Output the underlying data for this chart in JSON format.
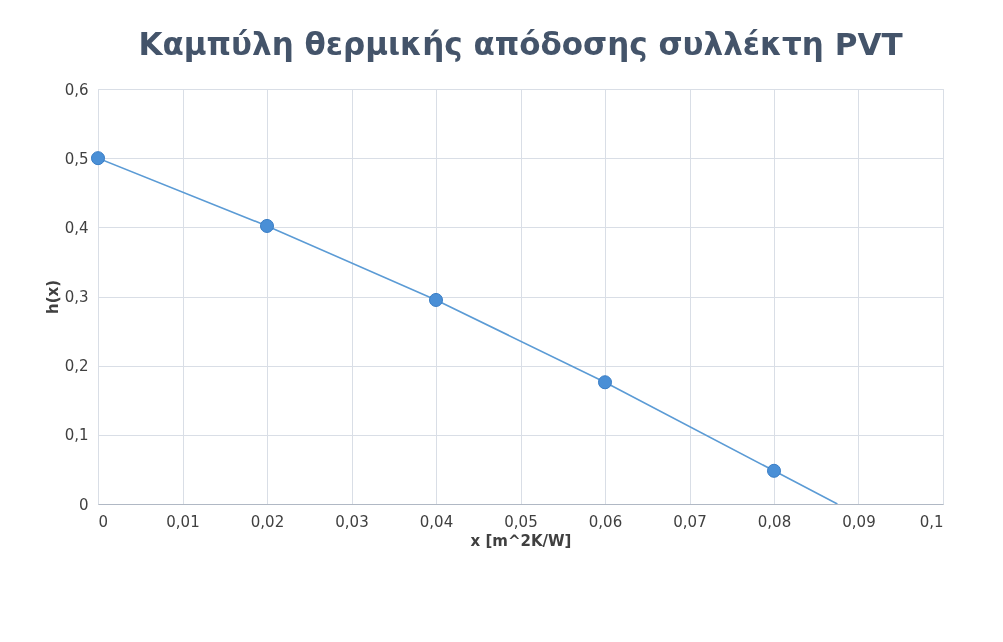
{
  "chart_data": {
    "type": "line",
    "title": "Καμπύλη θερμικής απόδοσης συλλέκτη PVT",
    "xlabel": "x [m^2K/W]",
    "ylabel": "h(x)",
    "series": [
      {
        "marker": "none",
        "color": "#5b9bd5",
        "x": [
          0,
          0.02,
          0.04,
          0.06,
          0.08,
          0.0875
        ],
        "values": [
          0.5,
          0.402,
          0.295,
          0.176,
          0.048,
          0
        ]
      },
      {
        "type": "scatter",
        "marker": "circle",
        "color": "#4a8fd6",
        "x": [
          0,
          0.02,
          0.04,
          0.06,
          0.08
        ],
        "values": [
          0.5,
          0.402,
          0.295,
          0.176,
          0.048
        ]
      }
    ],
    "xlim": [
      0,
      0.1
    ],
    "ylim": [
      0,
      0.6
    ],
    "xticks": [
      {
        "value": 0,
        "label": "0"
      },
      {
        "value": 0.01,
        "label": "0,01"
      },
      {
        "value": 0.02,
        "label": "0,02"
      },
      {
        "value": 0.03,
        "label": "0,03"
      },
      {
        "value": 0.04,
        "label": "0,04"
      },
      {
        "value": 0.05,
        "label": "0,05"
      },
      {
        "value": 0.06,
        "label": "0,06"
      },
      {
        "value": 0.07,
        "label": "0,07"
      },
      {
        "value": 0.08,
        "label": "0,08"
      },
      {
        "value": 0.09,
        "label": "0,09"
      },
      {
        "value": 0.1,
        "label": "0,1"
      }
    ],
    "yticks": [
      {
        "value": 0,
        "label": "0"
      },
      {
        "value": 0.1,
        "label": "0,1"
      },
      {
        "value": 0.2,
        "label": "0,2"
      },
      {
        "value": 0.3,
        "label": "0,3"
      },
      {
        "value": 0.4,
        "label": "0,4"
      },
      {
        "value": 0.5,
        "label": "0,5"
      },
      {
        "value": 0.6,
        "label": "0,6"
      }
    ],
    "grid": true
  }
}
